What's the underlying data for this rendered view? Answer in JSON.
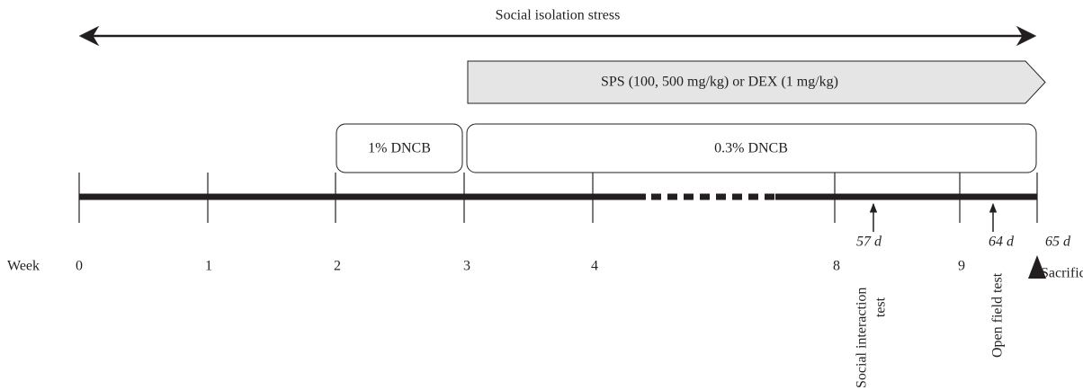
{
  "title": "Social isolation stress",
  "treatments": {
    "sps": "SPS (100, 500 mg/kg) or DEX (1 mg/kg)",
    "dncb_1": "1% DNCB",
    "dncb_03": "0.3% DNCB"
  },
  "axis": {
    "label": "Week",
    "weeks": [
      "0",
      "1",
      "2",
      "3",
      "4",
      "8",
      "9"
    ]
  },
  "days": [
    "57 d",
    "64 d",
    "65 d"
  ],
  "events": {
    "social_interaction": [
      "Social interaction",
      "test"
    ],
    "open_field": "Open field test",
    "sacrifice": "Sacrifice"
  }
}
